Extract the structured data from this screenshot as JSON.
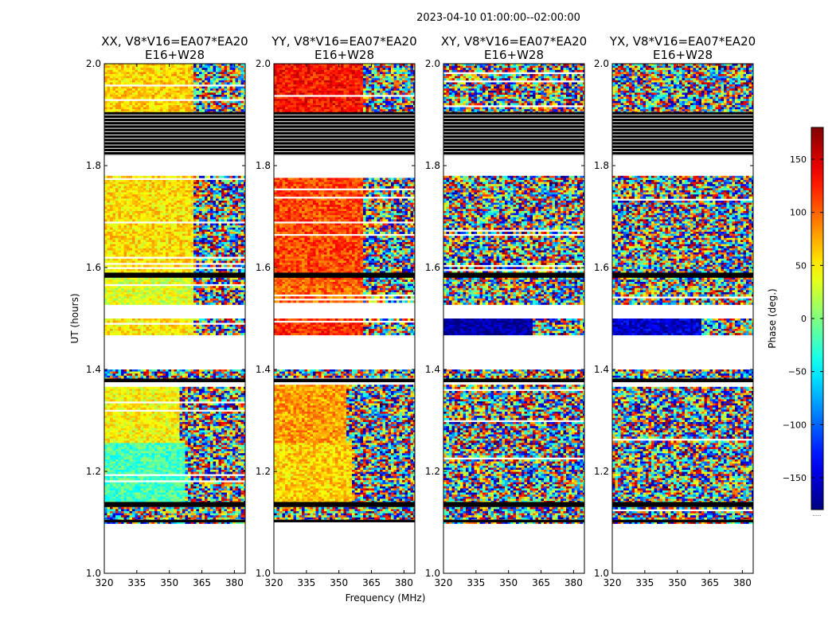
{
  "figure": {
    "suptitle": "2023-04-10  01:00:00--02:00:00",
    "xlabel": "Frequency (MHz)",
    "ylabel": "UT (hours)",
    "cbar_label": "Phase (deg.)",
    "cbar_ticks": [
      "150",
      "100",
      "50",
      "0",
      "−50",
      "−100",
      "−150"
    ],
    "cbar_note": "......"
  },
  "chart_data": [
    {
      "type": "heatmap",
      "title_line1": "XX, V8*V16=EA07*EA20",
      "title_line2": "E16+W28",
      "pol": "XX",
      "xlim": [
        320,
        385
      ],
      "ylim": [
        1.0,
        2.0
      ],
      "xticks": [
        "320",
        "335",
        "350",
        "365",
        "380"
      ],
      "yticks": [
        "1.0",
        "1.2",
        "1.4",
        "1.6",
        "1.8",
        "2.0"
      ],
      "regions": [
        {
          "ut": [
            1.1,
            1.13
          ],
          "phase_low_freq": "random",
          "phase_high_freq": "random",
          "split_mhz": 385
        },
        {
          "ut": [
            1.14,
            1.26
          ],
          "phase_low_freq": -20,
          "phase_high_freq": "random",
          "split_mhz": 356
        },
        {
          "ut": [
            1.26,
            1.37
          ],
          "phase_low_freq": 45,
          "phase_high_freq": "random",
          "split_mhz": 354
        },
        {
          "ut": [
            1.38,
            1.4
          ],
          "phase_low_freq": "random",
          "phase_high_freq": "random",
          "split_mhz": 385
        },
        {
          "ut": [
            1.47,
            1.5
          ],
          "phase_low_freq": 50,
          "phase_high_freq": "random",
          "split_mhz": 361
        },
        {
          "ut": [
            1.53,
            1.58
          ],
          "phase_low_freq": 35,
          "phase_high_freq": "random",
          "split_mhz": 360
        },
        {
          "ut": [
            1.58,
            1.78
          ],
          "phase_low_freq": 55,
          "phase_high_freq": "random",
          "split_mhz": 360
        },
        {
          "ut": [
            1.9,
            2.0
          ],
          "phase_low_freq": 60,
          "phase_high_freq": "random",
          "split_mhz": 361
        }
      ],
      "flagged_ut": [
        [
          1.1,
          1.105
        ],
        [
          1.13,
          1.14
        ],
        [
          1.375,
          1.382
        ],
        [
          1.58,
          1.59
        ],
        [
          1.82,
          1.905
        ]
      ]
    },
    {
      "type": "heatmap",
      "title_line1": "YY, V8*V16=EA07*EA20",
      "title_line2": "E16+W28",
      "pol": "YY",
      "xlim": [
        320,
        385
      ],
      "ylim": [
        1.0,
        2.0
      ],
      "xticks": [
        "320",
        "335",
        "350",
        "365",
        "380"
      ],
      "yticks": [
        "1.0",
        "1.2",
        "1.4",
        "1.6",
        "1.8",
        "2.0"
      ],
      "regions": [
        {
          "ut": [
            1.1,
            1.13
          ],
          "phase_low_freq": "random",
          "phase_high_freq": "random",
          "split_mhz": 385
        },
        {
          "ut": [
            1.14,
            1.26
          ],
          "phase_low_freq": 60,
          "phase_high_freq": "random",
          "split_mhz": 355
        },
        {
          "ut": [
            1.26,
            1.37
          ],
          "phase_low_freq": 80,
          "phase_high_freq": "random",
          "split_mhz": 353
        },
        {
          "ut": [
            1.38,
            1.4
          ],
          "phase_low_freq": "random",
          "phase_high_freq": "random",
          "split_mhz": 385
        },
        {
          "ut": [
            1.47,
            1.5
          ],
          "phase_low_freq": 120,
          "phase_high_freq": "random",
          "split_mhz": 360
        },
        {
          "ut": [
            1.53,
            1.58
          ],
          "phase_low_freq": 100,
          "phase_high_freq": "random",
          "split_mhz": 360
        },
        {
          "ut": [
            1.58,
            1.78
          ],
          "phase_low_freq": 110,
          "phase_high_freq": "random",
          "split_mhz": 360
        },
        {
          "ut": [
            1.9,
            2.0
          ],
          "phase_low_freq": 130,
          "phase_high_freq": "random",
          "split_mhz": 360
        }
      ],
      "flagged_ut": [
        [
          1.1,
          1.105
        ],
        [
          1.13,
          1.14
        ],
        [
          1.375,
          1.382
        ],
        [
          1.58,
          1.59
        ],
        [
          1.82,
          1.905
        ]
      ]
    },
    {
      "type": "heatmap",
      "title_line1": "XY, V8*V16=EA07*EA20",
      "title_line2": "E16+W28",
      "pol": "XY",
      "xlim": [
        320,
        385
      ],
      "ylim": [
        1.0,
        2.0
      ],
      "xticks": [
        "320",
        "335",
        "350",
        "365",
        "380"
      ],
      "yticks": [
        "1.0",
        "1.2",
        "1.4",
        "1.6",
        "1.8",
        "2.0"
      ],
      "regions": [
        {
          "ut": [
            1.1,
            1.13
          ],
          "phase_low_freq": "random",
          "phase_high_freq": "random",
          "split_mhz": 385
        },
        {
          "ut": [
            1.14,
            1.26
          ],
          "phase_low_freq": "random",
          "phase_high_freq": "random",
          "split_mhz": 352
        },
        {
          "ut": [
            1.26,
            1.37
          ],
          "phase_low_freq": "random",
          "phase_high_freq": "random",
          "split_mhz": 385
        },
        {
          "ut": [
            1.38,
            1.4
          ],
          "phase_low_freq": "random",
          "phase_high_freq": "random",
          "split_mhz": 385
        },
        {
          "ut": [
            1.47,
            1.5
          ],
          "phase_low_freq": -170,
          "phase_high_freq": "random",
          "split_mhz": 360
        },
        {
          "ut": [
            1.53,
            1.58
          ],
          "phase_low_freq": "random",
          "phase_high_freq": "random",
          "split_mhz": 385
        },
        {
          "ut": [
            1.58,
            1.78
          ],
          "phase_low_freq": "random",
          "phase_high_freq": "random",
          "split_mhz": 385
        },
        {
          "ut": [
            1.9,
            2.0
          ],
          "phase_low_freq": "random",
          "phase_high_freq": "random",
          "split_mhz": 385
        }
      ],
      "flagged_ut": [
        [
          1.1,
          1.105
        ],
        [
          1.13,
          1.14
        ],
        [
          1.375,
          1.382
        ],
        [
          1.58,
          1.59
        ],
        [
          1.82,
          1.905
        ]
      ]
    },
    {
      "type": "heatmap",
      "title_line1": "YX, V8*V16=EA07*EA20",
      "title_line2": "E16+W28",
      "pol": "YX",
      "xlim": [
        320,
        385
      ],
      "ylim": [
        1.0,
        2.0
      ],
      "xticks": [
        "320",
        "335",
        "350",
        "365",
        "380"
      ],
      "yticks": [
        "1.0",
        "1.2",
        "1.4",
        "1.6",
        "1.8",
        "2.0"
      ],
      "regions": [
        {
          "ut": [
            1.1,
            1.13
          ],
          "phase_low_freq": "random",
          "phase_high_freq": "random",
          "split_mhz": 385
        },
        {
          "ut": [
            1.14,
            1.26
          ],
          "phase_low_freq": "random",
          "phase_high_freq": "random",
          "split_mhz": 353
        },
        {
          "ut": [
            1.26,
            1.37
          ],
          "phase_low_freq": "random",
          "phase_high_freq": "random",
          "split_mhz": 385
        },
        {
          "ut": [
            1.38,
            1.4
          ],
          "phase_low_freq": "random",
          "phase_high_freq": "random",
          "split_mhz": 385
        },
        {
          "ut": [
            1.47,
            1.5
          ],
          "phase_low_freq": -150,
          "phase_high_freq": "random",
          "split_mhz": 360
        },
        {
          "ut": [
            1.53,
            1.58
          ],
          "phase_low_freq": "random",
          "phase_high_freq": "random",
          "split_mhz": 385
        },
        {
          "ut": [
            1.58,
            1.78
          ],
          "phase_low_freq": "random",
          "phase_high_freq": "random",
          "split_mhz": 385
        },
        {
          "ut": [
            1.9,
            2.0
          ],
          "phase_low_freq": "random",
          "phase_high_freq": "random",
          "split_mhz": 385
        }
      ],
      "flagged_ut": [
        [
          1.1,
          1.105
        ],
        [
          1.13,
          1.14
        ],
        [
          1.375,
          1.382
        ],
        [
          1.58,
          1.59
        ],
        [
          1.82,
          1.905
        ]
      ]
    }
  ],
  "colorbar": {
    "min": -180,
    "max": 180,
    "colormap": "jet"
  }
}
